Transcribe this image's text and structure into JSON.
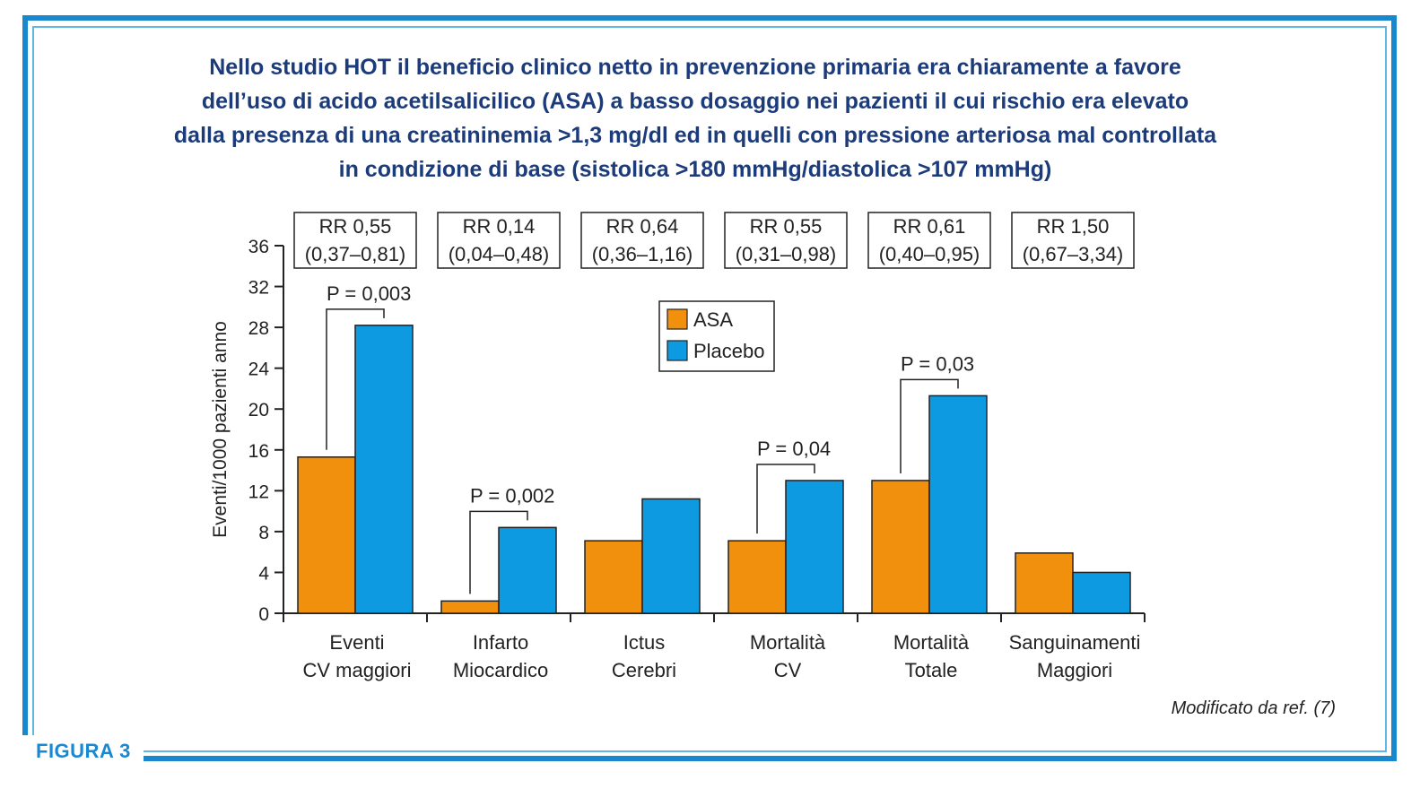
{
  "title_lines": [
    "Nello studio HOT il beneficio clinico netto in prevenzione primaria era chiaramente a favore",
    "dell’uso di acido acetilsalicilico (ASA) a basso dosaggio nei pazienti il cui rischio era elevato",
    "dalla presenza di una creatininemia >1,3 mg/dl ed in quelli con pressione arteriosa mal controllata",
    "in condizione di base (sistolica >180 mmHg/diastolica >107 mmHg)"
  ],
  "figure_label": "FIGURA 3",
  "source_note": "Modificato da ref. (7)",
  "colors": {
    "asa": "#f0900c",
    "placebo": "#0d9ae0",
    "frame": "#1a88cf",
    "title": "#1c3b7a"
  },
  "chart_data": {
    "type": "bar",
    "ylabel": "Eventi/1000 pazienti anno",
    "ylim": [
      0,
      36
    ],
    "yticks": [
      0,
      4,
      8,
      12,
      16,
      20,
      24,
      28,
      32,
      36
    ],
    "categories": [
      [
        "Eventi",
        "CV maggiori"
      ],
      [
        "Infarto",
        "Miocardico"
      ],
      [
        "Ictus",
        "Cerebri"
      ],
      [
        "Mortalità",
        "CV"
      ],
      [
        "Mortalità",
        "Totale"
      ],
      [
        "Sanguinamenti",
        "Maggiori"
      ]
    ],
    "series": [
      {
        "name": "ASA",
        "values": [
          15.3,
          1.2,
          7.1,
          7.1,
          13.0,
          5.9
        ]
      },
      {
        "name": "Placebo",
        "values": [
          28.2,
          8.4,
          11.2,
          13.0,
          21.3,
          4.0
        ]
      }
    ],
    "rr_boxes": [
      [
        "RR 0,55",
        "(0,37–0,81)"
      ],
      [
        "RR 0,14",
        "(0,04–0,48)"
      ],
      [
        "RR 0,64",
        "(0,36–1,16)"
      ],
      [
        "RR 0,55",
        "(0,31–0,98)"
      ],
      [
        "RR 0,61",
        "(0,40–0,95)"
      ],
      [
        "RR 1,50",
        "(0,67–3,34)"
      ]
    ],
    "p_values": [
      {
        "category_index": 0,
        "label": "P = 0,003"
      },
      {
        "category_index": 1,
        "label": "P = 0,002"
      },
      {
        "category_index": 3,
        "label": "P = 0,04"
      },
      {
        "category_index": 4,
        "label": "P = 0,03"
      }
    ],
    "legend": {
      "position": "top-center",
      "entries": [
        "ASA",
        "Placebo"
      ]
    },
    "grid": false
  }
}
